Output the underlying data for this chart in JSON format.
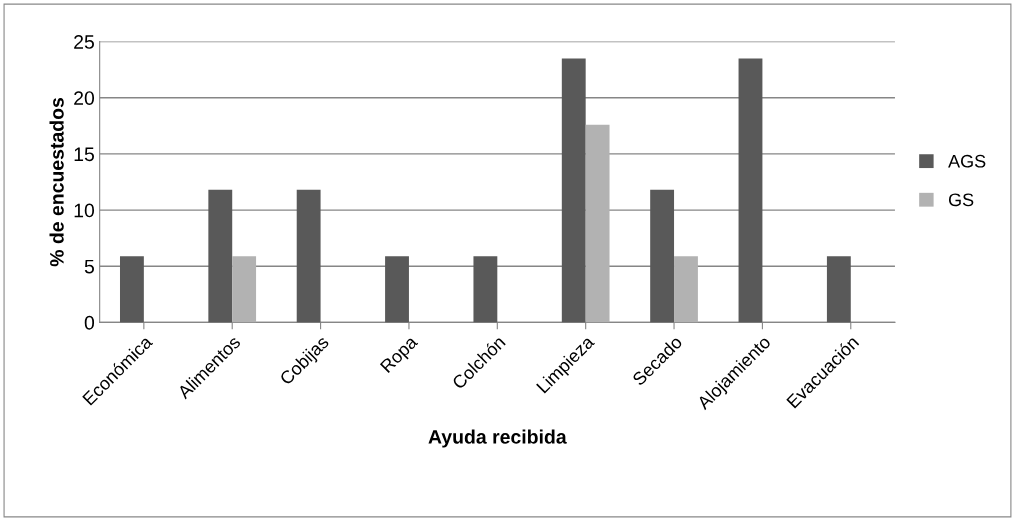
{
  "chart_data": {
    "type": "bar",
    "xlabel": "Ayuda recibida",
    "ylabel": "% de encuestados",
    "categories": [
      "Económica",
      "Alimentos",
      "Cobijas",
      "Ropa",
      "Colchón",
      "Limpieza",
      "Secado",
      "Alojamiento",
      "Evacuación"
    ],
    "series": [
      {
        "name": "AGS",
        "color": "#595959",
        "values": [
          5.9,
          11.8,
          11.8,
          5.9,
          5.9,
          23.5,
          11.8,
          23.5,
          5.9
        ]
      },
      {
        "name": "GS",
        "color": "#b2b2b2",
        "values": [
          null,
          5.9,
          null,
          null,
          null,
          17.6,
          5.9,
          null,
          null
        ]
      }
    ],
    "ylim": [
      0,
      25
    ],
    "yticks": [
      0,
      5,
      10,
      15,
      20,
      25
    ],
    "grid": "y",
    "legend": "right"
  }
}
